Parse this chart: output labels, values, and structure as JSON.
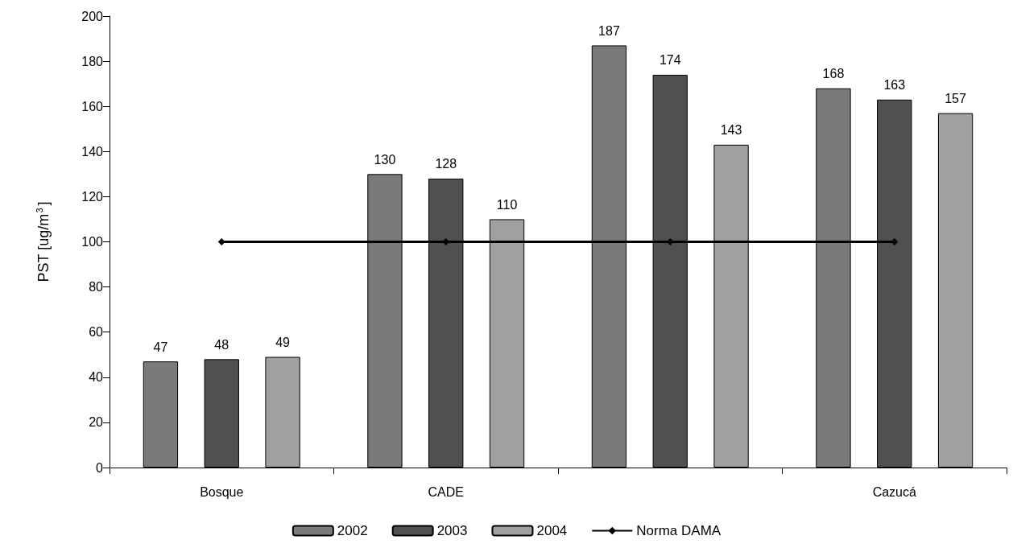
{
  "chart_data": {
    "type": "bar",
    "ylabel": "PST [ug/m$^{3}$]",
    "categories": [
      "Bosque",
      "CADE",
      null,
      "Cazucá"
    ],
    "series": [
      {
        "name": "2002",
        "color": "#7a7a7a",
        "values": [
          47,
          130,
          187,
          168
        ],
        "value_labels": [
          "47",
          "130",
          "187",
          "168"
        ]
      },
      {
        "name": "2003",
        "color": "#505050",
        "values": [
          48,
          128,
          174,
          163
        ],
        "value_labels": [
          "48",
          "128",
          "174",
          "163"
        ]
      },
      {
        "name": "2004",
        "color": "#a0a0a0",
        "values": [
          49,
          110,
          143,
          157
        ],
        "value_labels": [
          "49",
          "110",
          "143",
          "157"
        ]
      },
      {
        "name": "Norma DAMA",
        "type": "line",
        "color": "#000000",
        "values": [
          100,
          100,
          100,
          100
        ],
        "marker": "diamond"
      }
    ],
    "ylim": [
      0,
      200
    ],
    "yticks": [
      0,
      20,
      40,
      60,
      80,
      100,
      120,
      140,
      160,
      180,
      200
    ],
    "grid": false,
    "legend": "bottom"
  }
}
